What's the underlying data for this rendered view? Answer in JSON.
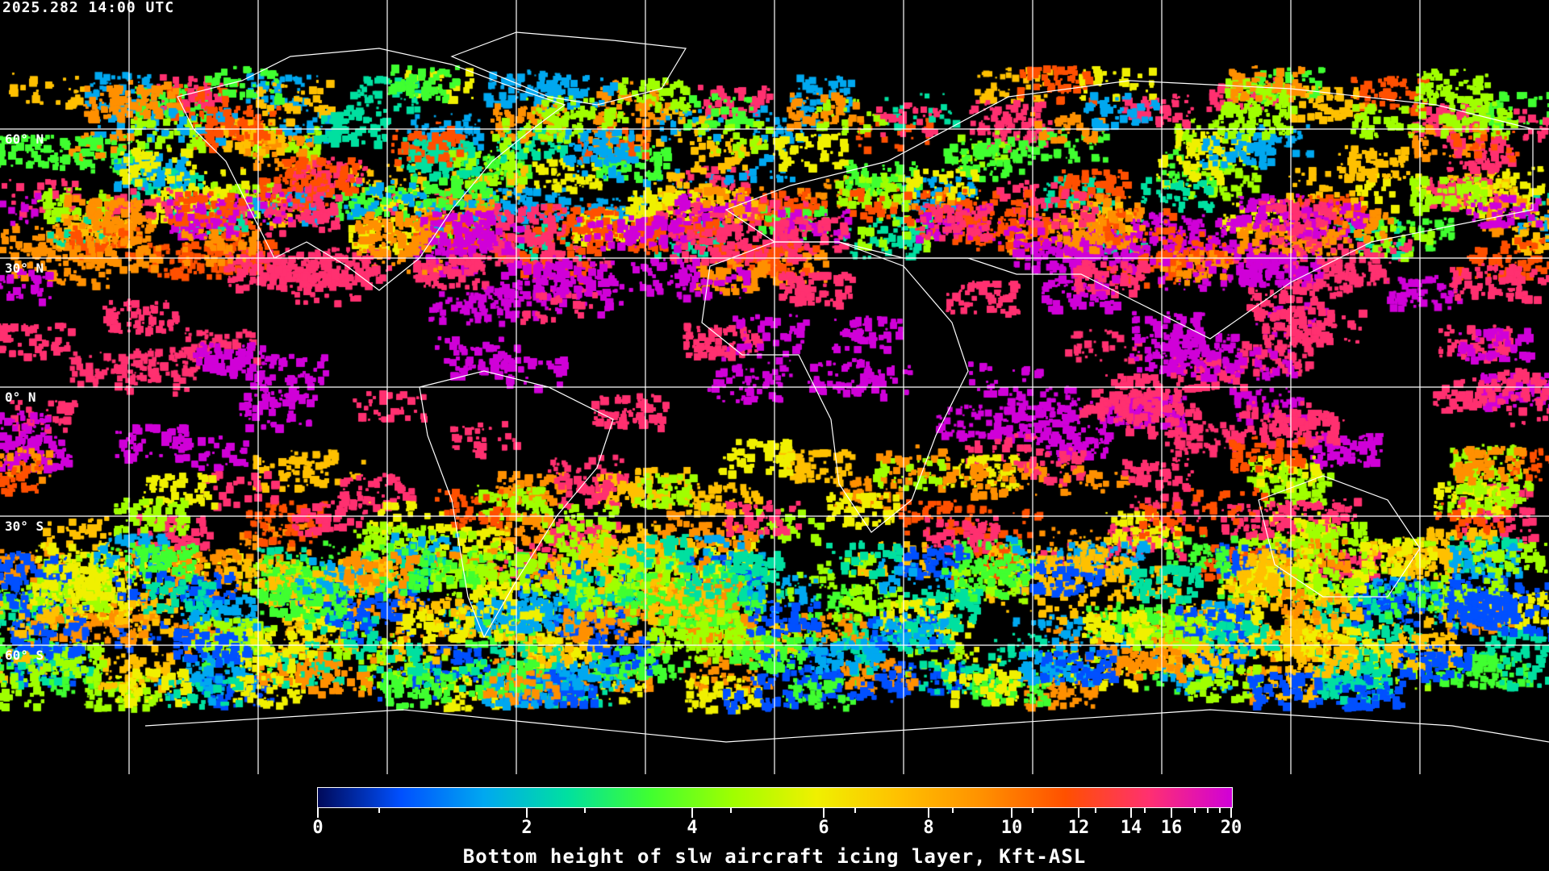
{
  "timestamp": "2025.282 14:00 UTC",
  "map": {
    "projection": "equirectangular",
    "gridlines": true,
    "grid_color": "#ffffff",
    "coastline_color": "#ffffff",
    "background": "#000000",
    "lat_labels": [
      "60° N",
      "30° N",
      "0° N",
      "30° S",
      "60° S"
    ]
  },
  "colorbar": {
    "title": "Bottom height of slw aircraft icing layer, Kft-ASL",
    "min": 0,
    "max": 20,
    "tick_labels": [
      "0",
      "2",
      "4",
      "6",
      "8",
      "10",
      "12",
      "14",
      "16",
      "20"
    ],
    "colors": [
      "#000a5a",
      "#0050ff",
      "#00a8f0",
      "#00e0a0",
      "#40ff30",
      "#a0ff00",
      "#f0f000",
      "#ffc000",
      "#ff9000",
      "#ff5000",
      "#ff3070",
      "#d000d8"
    ]
  }
}
